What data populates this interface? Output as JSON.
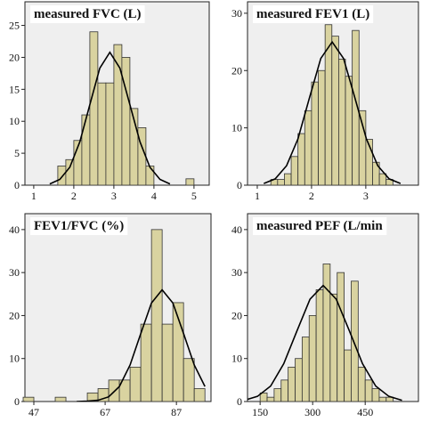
{
  "chart_data": [
    {
      "type": "histogram",
      "title": "measured FVC (L)",
      "color": "#d9d3a0",
      "bins": [
        1.6,
        1.8,
        2.0,
        2.2,
        2.4,
        2.6,
        2.8,
        3.0,
        3.2,
        3.4,
        3.6,
        3.8,
        4.0,
        4.2,
        4.4,
        4.6,
        4.8,
        5.0
      ],
      "counts": [
        3,
        4,
        7,
        11,
        24,
        16,
        16,
        22,
        20,
        12,
        9,
        3,
        0,
        0,
        0,
        0,
        1
      ],
      "curve": {
        "x": [
          1.4,
          1.65,
          1.9,
          2.15,
          2.4,
          2.65,
          2.9,
          3.15,
          3.4,
          3.65,
          3.9,
          4.15,
          4.4
        ],
        "values": [
          0.2,
          0.9,
          2.8,
          6.8,
          12.6,
          18.3,
          20.8,
          18.3,
          12.6,
          6.8,
          2.8,
          0.9,
          0.2
        ]
      },
      "xlim": [
        0.78,
        5.38
      ],
      "ylim": [
        0,
        28.7
      ],
      "xticks": [
        1,
        2,
        3,
        4,
        5
      ],
      "yticks": [
        0,
        5,
        10,
        15,
        20,
        25
      ]
    },
    {
      "type": "histogram",
      "title": "measured FEV1 (L)",
      "color": "#d9d3a0",
      "bins": [
        1.25,
        1.375,
        1.5,
        1.625,
        1.75,
        1.875,
        2.0,
        2.125,
        2.25,
        2.375,
        2.5,
        2.625,
        2.75,
        2.875,
        3.0,
        3.125,
        3.25,
        3.375,
        3.5
      ],
      "counts": [
        1,
        1,
        2,
        5,
        9,
        13,
        18,
        20,
        28,
        26,
        22,
        19,
        27,
        13,
        8,
        4,
        2,
        1
      ],
      "curve": {
        "x": [
          1.12,
          1.33,
          1.54,
          1.75,
          1.96,
          2.17,
          2.38,
          2.59,
          2.8,
          3.01,
          3.22,
          3.43,
          3.64
        ],
        "values": [
          0.3,
          1.1,
          3.4,
          8.1,
          15.2,
          22.1,
          25,
          22.1,
          15.2,
          8.1,
          3.4,
          1.1,
          0.3
        ]
      },
      "xlim": [
        0.82,
        3.97
      ],
      "ylim": [
        0,
        32
      ],
      "xticks": [
        1,
        2,
        3
      ],
      "yticks": [
        0,
        10,
        20,
        30
      ]
    },
    {
      "type": "histogram",
      "title": "FEV1/FVC (%)",
      "color": "#d9d3a0",
      "bins": [
        44,
        47,
        50,
        53,
        56,
        59,
        62,
        65,
        68,
        71,
        74,
        77,
        80,
        83,
        86,
        89,
        92,
        95
      ],
      "counts": [
        1,
        0,
        0,
        1,
        0,
        0,
        2,
        3,
        5,
        5,
        8,
        18,
        40,
        18,
        23,
        10,
        3
      ],
      "curve": {
        "x": [
          59,
          62,
          65,
          68,
          71,
          74,
          77,
          80,
          83,
          86,
          89,
          92,
          95
        ],
        "values": [
          0,
          0.1,
          0.3,
          1.1,
          3.5,
          8.5,
          15.8,
          22.9,
          26,
          22.9,
          15.8,
          8.5,
          3.5
        ]
      },
      "xlim": [
        44.5,
        96.7
      ],
      "ylim": [
        0,
        43.7
      ],
      "xticks": [
        47,
        67,
        87
      ],
      "yticks": [
        0,
        10,
        20,
        30,
        40
      ]
    },
    {
      "type": "histogram",
      "title": "measured PEF (L/min",
      "color": "#d9d3a0",
      "bins": [
        150,
        170,
        190,
        210,
        230,
        250,
        270,
        290,
        310,
        330,
        350,
        370,
        390,
        410,
        430,
        450,
        470,
        490,
        510,
        530
      ],
      "counts": [
        2,
        1,
        3,
        5,
        8,
        10,
        15,
        20,
        26,
        32,
        25,
        30,
        12,
        28,
        8,
        5,
        3,
        1,
        1
      ],
      "curve": {
        "x": [
          105,
          142.5,
          180,
          217.5,
          255,
          292.5,
          330,
          367.5,
          405,
          442.5,
          480,
          517.5,
          555
        ],
        "values": [
          0.3,
          1.2,
          3.6,
          8.8,
          16.4,
          23.8,
          27,
          23.8,
          16.4,
          8.8,
          3.6,
          1.2,
          0.3
        ]
      },
      "xlim": [
        114,
        602
      ],
      "ylim": [
        0,
        43.7
      ],
      "xticks": [
        150,
        300,
        450
      ],
      "yticks": [
        0,
        10,
        20,
        30,
        40
      ]
    }
  ]
}
